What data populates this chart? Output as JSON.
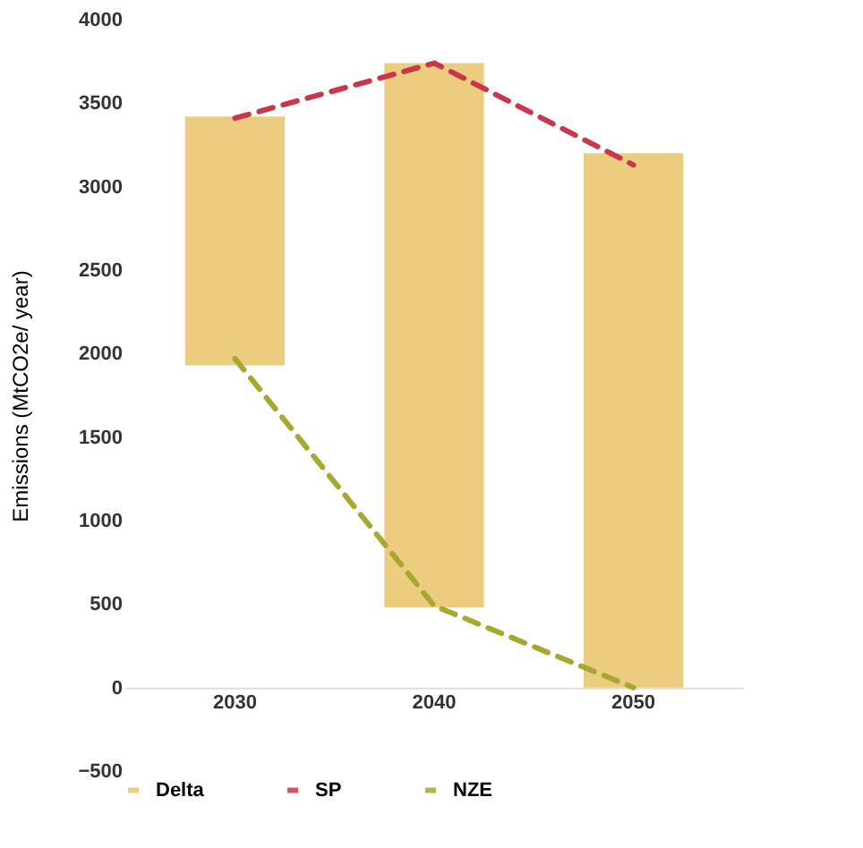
{
  "chart_data": {
    "type": "bar",
    "ylabel": "Emissions (MtCO2e/ year)",
    "categories": [
      "2030",
      "2040",
      "2050"
    ],
    "ylim": [
      -500,
      4000
    ],
    "yticks": [
      -500,
      0,
      500,
      1000,
      1500,
      2000,
      2500,
      3000,
      3500,
      4000
    ],
    "grid": false,
    "legend": "bottom",
    "series": [
      {
        "name": "Delta",
        "color": "#e9c46a",
        "base": [
          1930,
          480,
          0
        ],
        "values": [
          1490,
          3260,
          3200
        ]
      },
      {
        "name": "SP",
        "type": "line",
        "color": "#c8374a",
        "line_style": "dashed",
        "values": [
          3410,
          3740,
          3130
        ]
      },
      {
        "name": "NZE",
        "type": "line",
        "color": "#a8a830",
        "line_style": "dashed",
        "values": [
          1970,
          490,
          0
        ]
      }
    ]
  }
}
